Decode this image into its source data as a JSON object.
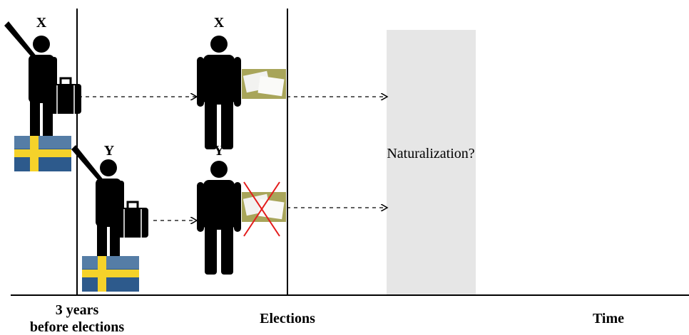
{
  "persons": [
    {
      "label": "X"
    },
    {
      "label": "X"
    },
    {
      "label": "Y"
    },
    {
      "label": "Y"
    }
  ],
  "annotation": "Naturalization?",
  "axis": {
    "start_label": [
      "3 years",
      "before elections"
    ],
    "elections_label": "Elections",
    "time_label": "Time"
  }
}
